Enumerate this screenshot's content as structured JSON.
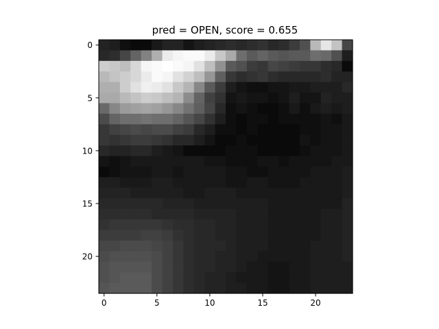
{
  "chart_data": {
    "type": "heatmap",
    "title": "pred = OPEN, score = 0.655",
    "colormap": "gray",
    "value_range": [
      0,
      255
    ],
    "x_ticks": [
      0,
      5,
      10,
      15,
      20
    ],
    "y_ticks": [
      0,
      5,
      10,
      15,
      20
    ],
    "xlim": [
      -0.5,
      23.5
    ],
    "ylim": [
      23.5,
      -0.5
    ],
    "grid": false,
    "rows": [
      [
        35,
        30,
        15,
        10,
        10,
        25,
        35,
        35,
        20,
        30,
        35,
        40,
        45,
        40,
        45,
        50,
        40,
        45,
        60,
        80,
        185,
        230,
        195,
        70
      ],
      [
        40,
        45,
        70,
        100,
        130,
        175,
        235,
        245,
        250,
        250,
        235,
        200,
        170,
        110,
        90,
        100,
        90,
        85,
        90,
        90,
        110,
        105,
        80,
        30
      ],
      [
        205,
        200,
        190,
        215,
        245,
        250,
        255,
        250,
        245,
        225,
        190,
        145,
        90,
        80,
        60,
        55,
        70,
        65,
        60,
        55,
        55,
        45,
        40,
        10
      ],
      [
        185,
        195,
        205,
        215,
        235,
        250,
        245,
        225,
        210,
        190,
        150,
        95,
        55,
        45,
        50,
        55,
        45,
        40,
        40,
        40,
        40,
        45,
        35,
        35
      ],
      [
        175,
        175,
        205,
        225,
        240,
        235,
        225,
        200,
        180,
        135,
        90,
        60,
        30,
        20,
        15,
        15,
        20,
        20,
        25,
        25,
        30,
        30,
        30,
        40
      ],
      [
        170,
        170,
        185,
        195,
        205,
        200,
        190,
        180,
        140,
        100,
        65,
        50,
        20,
        25,
        20,
        20,
        15,
        20,
        30,
        20,
        20,
        35,
        30,
        30
      ],
      [
        105,
        135,
        155,
        160,
        165,
        160,
        150,
        135,
        115,
        95,
        70,
        40,
        15,
        20,
        15,
        10,
        10,
        15,
        25,
        15,
        25,
        30,
        25,
        30
      ],
      [
        75,
        100,
        110,
        110,
        115,
        110,
        110,
        100,
        85,
        70,
        50,
        30,
        15,
        10,
        15,
        15,
        10,
        15,
        15,
        15,
        15,
        20,
        15,
        25
      ],
      [
        55,
        65,
        70,
        75,
        70,
        75,
        75,
        65,
        60,
        40,
        30,
        15,
        15,
        10,
        15,
        10,
        10,
        10,
        10,
        15,
        15,
        20,
        20,
        25
      ],
      [
        55,
        50,
        55,
        60,
        60,
        55,
        50,
        40,
        40,
        30,
        20,
        10,
        10,
        15,
        10,
        10,
        10,
        10,
        10,
        20,
        15,
        20,
        20,
        25
      ],
      [
        40,
        35,
        35,
        40,
        40,
        30,
        25,
        20,
        10,
        10,
        10,
        10,
        15,
        15,
        15,
        10,
        10,
        10,
        10,
        15,
        20,
        20,
        20,
        25
      ],
      [
        20,
        15,
        20,
        25,
        25,
        25,
        25,
        25,
        25,
        25,
        20,
        20,
        15,
        15,
        15,
        20,
        20,
        15,
        20,
        20,
        20,
        20,
        25,
        25
      ],
      [
        10,
        15,
        20,
        20,
        20,
        25,
        25,
        20,
        25,
        25,
        25,
        25,
        20,
        20,
        15,
        15,
        20,
        20,
        20,
        20,
        25,
        25,
        25,
        30
      ],
      [
        30,
        30,
        25,
        25,
        25,
        30,
        30,
        25,
        25,
        25,
        25,
        25,
        20,
        20,
        25,
        25,
        20,
        20,
        20,
        25,
        25,
        25,
        25,
        30
      ],
      [
        35,
        35,
        35,
        30,
        30,
        30,
        30,
        30,
        25,
        25,
        30,
        30,
        30,
        25,
        25,
        25,
        25,
        25,
        25,
        25,
        25,
        25,
        25,
        30
      ],
      [
        40,
        40,
        40,
        40,
        40,
        40,
        35,
        35,
        35,
        30,
        30,
        30,
        30,
        30,
        30,
        30,
        25,
        25,
        25,
        25,
        25,
        25,
        25,
        35
      ],
      [
        45,
        45,
        45,
        45,
        45,
        40,
        40,
        40,
        40,
        35,
        35,
        35,
        35,
        30,
        30,
        30,
        25,
        25,
        25,
        25,
        25,
        30,
        30,
        35
      ],
      [
        50,
        55,
        55,
        55,
        55,
        55,
        50,
        45,
        45,
        40,
        40,
        35,
        35,
        30,
        30,
        30,
        25,
        25,
        25,
        25,
        25,
        30,
        30,
        35
      ],
      [
        60,
        60,
        60,
        60,
        65,
        65,
        60,
        50,
        45,
        40,
        40,
        35,
        35,
        30,
        30,
        30,
        25,
        25,
        25,
        25,
        25,
        30,
        30,
        35
      ],
      [
        70,
        70,
        75,
        75,
        75,
        70,
        65,
        55,
        45,
        40,
        40,
        40,
        35,
        30,
        30,
        30,
        25,
        25,
        25,
        25,
        30,
        30,
        30,
        35
      ],
      [
        75,
        80,
        80,
        80,
        80,
        75,
        65,
        55,
        45,
        40,
        40,
        35,
        35,
        30,
        30,
        25,
        25,
        25,
        25,
        25,
        30,
        30,
        30,
        35
      ],
      [
        80,
        85,
        85,
        85,
        85,
        75,
        65,
        55,
        45,
        40,
        40,
        35,
        35,
        30,
        25,
        25,
        20,
        20,
        25,
        25,
        30,
        30,
        30,
        30
      ],
      [
        80,
        85,
        90,
        90,
        90,
        75,
        65,
        55,
        45,
        40,
        35,
        35,
        30,
        25,
        25,
        25,
        20,
        20,
        25,
        25,
        30,
        30,
        30,
        30
      ],
      [
        85,
        90,
        90,
        90,
        90,
        75,
        65,
        55,
        45,
        40,
        35,
        35,
        30,
        30,
        25,
        25,
        20,
        20,
        25,
        25,
        30,
        30,
        30,
        30
      ]
    ]
  }
}
